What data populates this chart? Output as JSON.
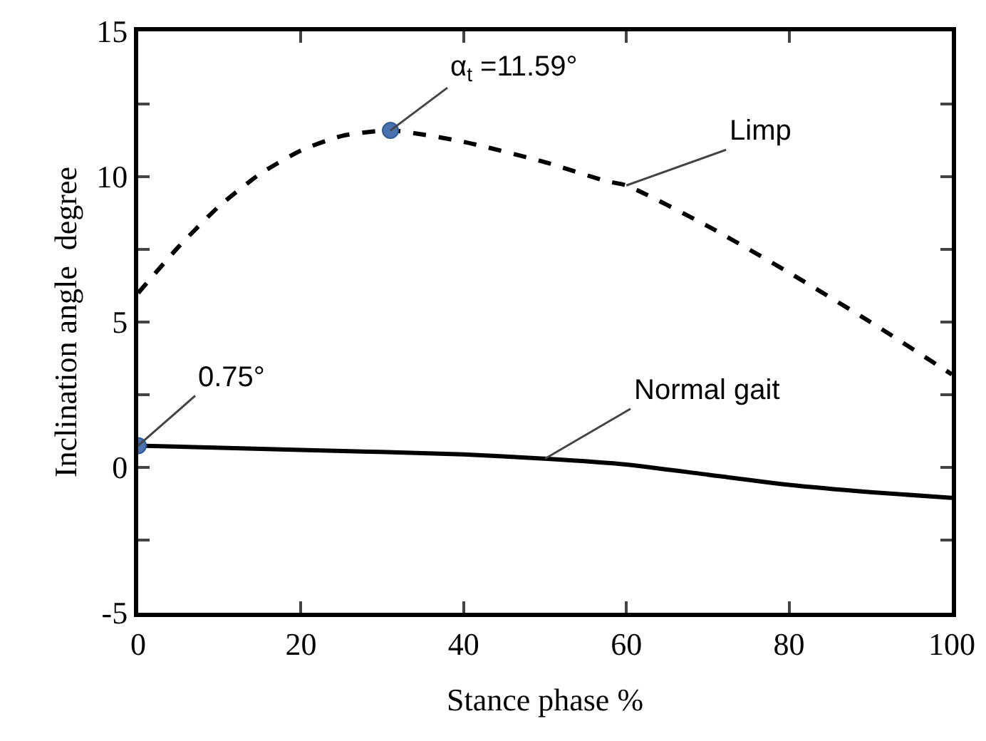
{
  "chart_data": {
    "type": "line",
    "xlabel": "Stance phase %",
    "ylabel": "Inclination angle  degree",
    "xlim": [
      0,
      100
    ],
    "xticks": [
      0,
      20,
      40,
      60,
      80,
      100
    ],
    "ylim": [
      -5,
      15
    ],
    "yticks": [
      -5,
      {
        "value": -2.5,
        "label": null
      },
      0,
      {
        "value": 2.5,
        "label": null
      },
      5,
      {
        "value": 7.5,
        "label": null
      },
      10,
      {
        "value": 12.5,
        "label": null
      },
      15
    ],
    "grid": false,
    "legend": false,
    "series": [
      {
        "name": "Limp",
        "color": "#000000",
        "line_style": "dashed",
        "x": [
          0,
          5,
          10,
          15,
          20,
          25,
          31,
          40,
          50,
          57.5,
          60,
          70,
          80,
          90,
          100
        ],
        "values": [
          6.0,
          7.6,
          9.0,
          10.1,
          10.9,
          11.4,
          11.59,
          11.2,
          10.5,
          9.85,
          9.7,
          8.3,
          6.7,
          5.0,
          3.2
        ]
      },
      {
        "name": "Normal gait",
        "color": "#000000",
        "line_style": "solid",
        "x": [
          0,
          20,
          40,
          50,
          60,
          70,
          80,
          90,
          100
        ],
        "values": [
          0.75,
          0.6,
          0.45,
          0.3,
          0.1,
          -0.25,
          -0.6,
          -0.85,
          -1.05
        ]
      },
      {
        "type": "scatter",
        "color": "#4a72b0",
        "marker": "circle",
        "x": [
          0,
          31
        ],
        "values": [
          0.75,
          11.59
        ]
      }
    ],
    "annotations": [
      {
        "text": "α$_{t}$ =11.59°",
        "x": 31,
        "y": 11.59
      },
      {
        "text": "0.75°",
        "x": 0,
        "y": 0.75
      }
    ]
  }
}
